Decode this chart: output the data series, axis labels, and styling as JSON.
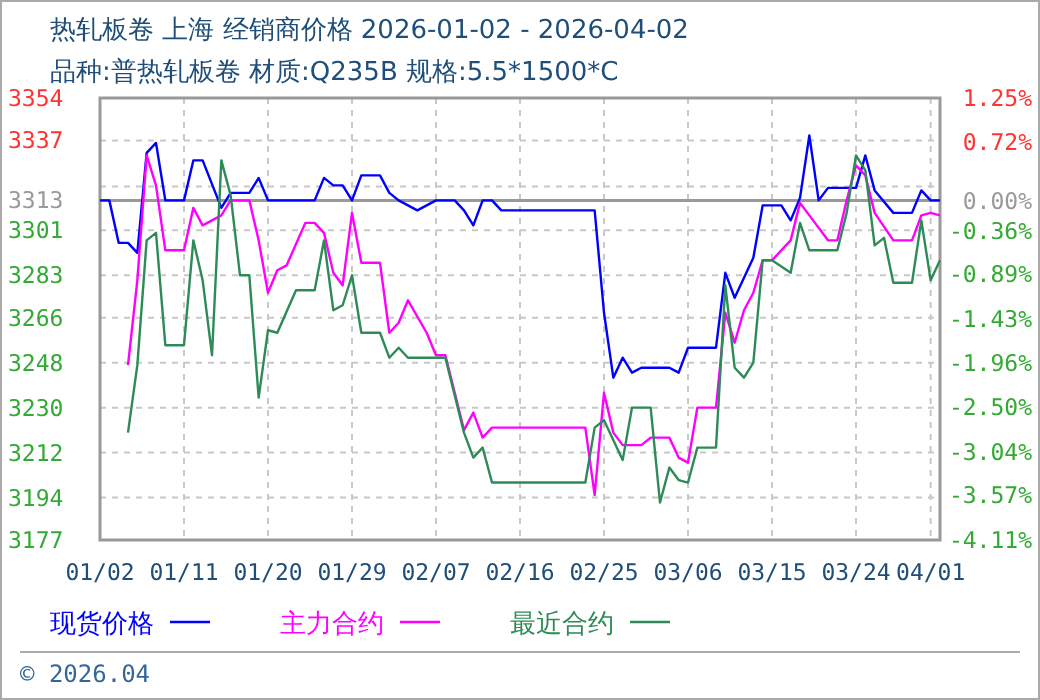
{
  "chart_data": {
    "type": "line",
    "title": "热轧板卷 上海 经销商价格 2026-01-02 - 2026-04-02",
    "subtitle": "品种:普热轧板卷 材质:Q235B 规格:5.5*1500*C",
    "annotations": [
      "© 2026.04"
    ],
    "xlim": [
      "2026-01-02",
      "2026-04-02"
    ],
    "xticks": [
      {
        "value": "2026-01-02",
        "label": "01/02"
      },
      {
        "value": "2026-01-11",
        "label": "01/11"
      },
      {
        "value": "2026-01-20",
        "label": "01/20"
      },
      {
        "value": "2026-01-29",
        "label": "01/29"
      },
      {
        "value": "2026-02-07",
        "label": "02/07"
      },
      {
        "value": "2026-02-16",
        "label": "02/16"
      },
      {
        "value": "2026-02-25",
        "label": "02/25"
      },
      {
        "value": "2026-03-06",
        "label": "03/06"
      },
      {
        "value": "2026-03-15",
        "label": "03/15"
      },
      {
        "value": "2026-03-24",
        "label": "03/24"
      },
      {
        "value": "2026-04-01",
        "label": "04/01"
      }
    ],
    "ylim": [
      3177,
      3354
    ],
    "yticks": [
      3177,
      3194,
      3212,
      3230,
      3248,
      3266,
      3283,
      3301,
      3313,
      {
        "value": 3318.6,
        "label": null
      },
      3337,
      3354
    ],
    "y2lim": [
      -4.11,
      1.25
    ],
    "y2ticks": [
      {
        "value": -4.11,
        "label": "-4.11%"
      },
      {
        "value": -3.57,
        "label": "-3.57%"
      },
      {
        "value": -3.04,
        "label": "-3.04%"
      },
      {
        "value": -2.5,
        "label": "-2.50%"
      },
      {
        "value": -1.96,
        "label": "-1.96%"
      },
      {
        "value": -1.43,
        "label": "-1.43%"
      },
      {
        "value": -0.89,
        "label": "-0.89%"
      },
      {
        "value": -0.36,
        "label": "-0.36%"
      },
      {
        "value": 0,
        "label": "0.00%"
      },
      {
        "value": 0.72,
        "label": "0.72%"
      },
      {
        "value": 1.25,
        "label": "1.25%"
      }
    ],
    "ref_lines": [
      {
        "axis": "y",
        "value": 3313,
        "color": "#999999"
      }
    ],
    "grid": true,
    "legend": "bottom",
    "series": [
      {
        "name": "现货价格",
        "color": "#0000ff",
        "x": [
          "2026-01-02",
          "2026-01-03",
          "2026-01-04",
          "2026-01-05",
          "2026-01-06",
          "2026-01-07",
          "2026-01-08",
          "2026-01-09",
          "2026-01-11",
          "2026-01-12",
          "2026-01-13",
          "2026-01-15",
          "2026-01-16",
          "2026-01-18",
          "2026-01-19",
          "2026-01-20",
          "2026-01-25",
          "2026-01-26",
          "2026-01-27",
          "2026-01-28",
          "2026-01-29",
          "2026-01-30",
          "2026-02-01",
          "2026-02-02",
          "2026-02-03",
          "2026-02-05",
          "2026-02-07",
          "2026-02-09",
          "2026-02-10",
          "2026-02-11",
          "2026-02-12",
          "2026-02-13",
          "2026-02-14",
          "2026-02-24",
          "2026-02-25",
          "2026-02-26",
          "2026-02-27",
          "2026-02-28",
          "2026-03-01",
          "2026-03-04",
          "2026-03-05",
          "2026-03-06",
          "2026-03-09",
          "2026-03-10",
          "2026-03-11",
          "2026-03-13",
          "2026-03-14",
          "2026-03-16",
          "2026-03-17",
          "2026-03-18",
          "2026-03-19",
          "2026-03-20",
          "2026-03-21",
          "2026-03-24",
          "2026-03-25",
          "2026-03-26",
          "2026-03-28",
          "2026-03-30",
          "2026-03-31",
          "2026-04-01",
          "2026-04-02"
        ],
        "values": [
          3313,
          3313,
          3296,
          3296,
          3292,
          3332,
          3336,
          3313,
          3313,
          3329,
          3329,
          3310,
          3316,
          3316,
          3322,
          3313,
          3313,
          3322,
          3319,
          3319,
          3313,
          3323,
          3323,
          3316,
          3313,
          3309,
          3313,
          3313,
          3309,
          3303,
          3313,
          3313,
          3309,
          3309,
          3268,
          3242,
          3250,
          3244,
          3246,
          3246,
          3244,
          3254,
          3254,
          3284,
          3274,
          3290,
          3311,
          3311,
          3305,
          3314,
          3339,
          3313,
          3318,
          3318,
          3331,
          3317,
          3308,
          3308,
          3317,
          3313,
          3313
        ]
      },
      {
        "name": "主力合约",
        "color": "#ff00ff",
        "x": [
          "2026-01-05",
          "2026-01-06",
          "2026-01-07",
          "2026-01-08",
          "2026-01-09",
          "2026-01-11",
          "2026-01-12",
          "2026-01-13",
          "2026-01-14",
          "2026-01-15",
          "2026-01-16",
          "2026-01-18",
          "2026-01-19",
          "2026-01-20",
          "2026-01-21",
          "2026-01-22",
          "2026-01-24",
          "2026-01-25",
          "2026-01-26",
          "2026-01-27",
          "2026-01-28",
          "2026-01-29",
          "2026-01-30",
          "2026-02-01",
          "2026-02-02",
          "2026-02-03",
          "2026-02-04",
          "2026-02-06",
          "2026-02-07",
          "2026-02-08",
          "2026-02-09",
          "2026-02-10",
          "2026-02-11",
          "2026-02-12",
          "2026-02-13",
          "2026-02-23",
          "2026-02-24",
          "2026-02-25",
          "2026-02-26",
          "2026-02-27",
          "2026-03-01",
          "2026-03-02",
          "2026-03-04",
          "2026-03-05",
          "2026-03-06",
          "2026-03-07",
          "2026-03-09",
          "2026-03-10",
          "2026-03-11",
          "2026-03-12",
          "2026-03-13",
          "2026-03-14",
          "2026-03-15",
          "2026-03-17",
          "2026-03-18",
          "2026-03-19",
          "2026-03-21",
          "2026-03-22",
          "2026-03-23",
          "2026-03-24",
          "2026-03-25",
          "2026-03-26",
          "2026-03-28",
          "2026-03-30",
          "2026-03-31",
          "2026-04-01",
          "2026-04-02"
        ],
        "values": [
          3247,
          3281,
          3331,
          3319,
          3293,
          3293,
          3310,
          3303,
          3305,
          3307,
          3313,
          3313,
          3297,
          3276,
          3285,
          3287,
          3304,
          3304,
          3300,
          3284,
          3279,
          3308,
          3288,
          3288,
          3260,
          3264,
          3273,
          3260,
          3251,
          3251,
          3236,
          3221,
          3228,
          3218,
          3222,
          3222,
          3195,
          3236,
          3220,
          3215,
          3215,
          3218,
          3218,
          3210,
          3208,
          3230,
          3230,
          3268,
          3256,
          3269,
          3276,
          3289,
          3289,
          3297,
          3312,
          3307,
          3297,
          3297,
          3313,
          3327,
          3323,
          3308,
          3297,
          3297,
          3307,
          3308,
          3307
        ]
      },
      {
        "name": "最近合约",
        "color": "#2e8b57",
        "x": [
          "2026-01-05",
          "2026-01-06",
          "2026-01-07",
          "2026-01-08",
          "2026-01-09",
          "2026-01-11",
          "2026-01-12",
          "2026-01-13",
          "2026-01-14",
          "2026-01-15",
          "2026-01-16",
          "2026-01-17",
          "2026-01-18",
          "2026-01-19",
          "2026-01-20",
          "2026-01-21",
          "2026-01-23",
          "2026-01-25",
          "2026-01-26",
          "2026-01-27",
          "2026-01-28",
          "2026-01-29",
          "2026-01-30",
          "2026-02-01",
          "2026-02-02",
          "2026-02-03",
          "2026-02-04",
          "2026-02-08",
          "2026-02-09",
          "2026-02-10",
          "2026-02-11",
          "2026-02-12",
          "2026-02-13",
          "2026-02-23",
          "2026-02-24",
          "2026-02-25",
          "2026-02-27",
          "2026-02-28",
          "2026-03-02",
          "2026-03-03",
          "2026-03-04",
          "2026-03-05",
          "2026-03-06",
          "2026-03-07",
          "2026-03-09",
          "2026-03-10",
          "2026-03-11",
          "2026-03-12",
          "2026-03-13",
          "2026-03-14",
          "2026-03-15",
          "2026-03-17",
          "2026-03-18",
          "2026-03-19",
          "2026-03-22",
          "2026-03-23",
          "2026-03-24",
          "2026-03-25",
          "2026-03-26",
          "2026-03-27",
          "2026-03-28",
          "2026-03-30",
          "2026-03-31",
          "2026-04-01",
          "2026-04-02"
        ],
        "values": [
          3220,
          3247,
          3297,
          3300,
          3255,
          3255,
          3297,
          3281,
          3251,
          3329,
          3315,
          3283,
          3283,
          3234,
          3261,
          3260,
          3277,
          3277,
          3297,
          3269,
          3271,
          3283,
          3260,
          3260,
          3250,
          3254,
          3250,
          3250,
          3235,
          3220,
          3210,
          3214,
          3200,
          3200,
          3222,
          3225,
          3209,
          3230,
          3230,
          3192,
          3206,
          3201,
          3200,
          3214,
          3214,
          3279,
          3246,
          3242,
          3248,
          3289,
          3289,
          3284,
          3304,
          3293,
          3293,
          3308,
          3331,
          3325,
          3295,
          3298,
          3280,
          3280,
          3305,
          3281,
          3289
        ]
      }
    ]
  }
}
